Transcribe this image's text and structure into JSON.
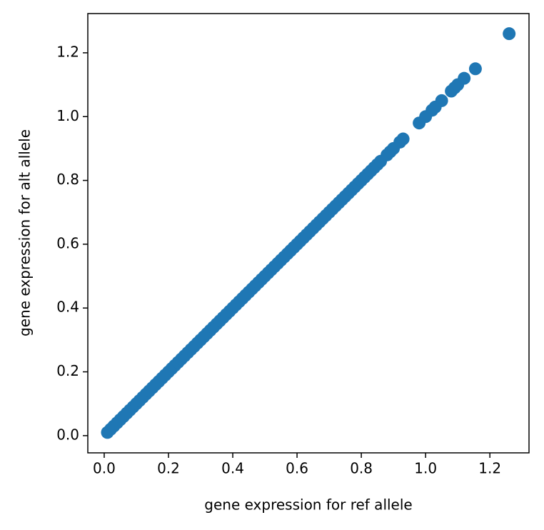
{
  "chart_data": {
    "type": "scatter",
    "x_label": "gene expression for ref allele",
    "y_label": "gene expression for alt allele",
    "color": "#1f77b4",
    "xlim": [
      -0.051,
      1.324
    ],
    "ylim": [
      -0.054,
      1.323
    ],
    "xticks": [
      {
        "value": 0,
        "label": "0.0"
      },
      0.2,
      0.4,
      0.6,
      0.8,
      {
        "value": 1,
        "label": "1.0"
      },
      1.2
    ],
    "yticks": [
      {
        "value": 0,
        "label": "0.0"
      },
      0.2,
      0.4,
      0.6,
      0.8,
      {
        "value": 1,
        "label": "1.0"
      },
      1.2
    ],
    "x": [
      0.01,
      0.02,
      0.03,
      0.04,
      0.05,
      0.06,
      0.07,
      0.08,
      0.09,
      0.1,
      0.11,
      0.12,
      0.13,
      0.14,
      0.15,
      0.16,
      0.17,
      0.18,
      0.19,
      0.2,
      0.21,
      0.22,
      0.23,
      0.24,
      0.25,
      0.26,
      0.27,
      0.28,
      0.29,
      0.3,
      0.31,
      0.32,
      0.33,
      0.34,
      0.35,
      0.36,
      0.37,
      0.38,
      0.39,
      0.4,
      0.41,
      0.42,
      0.43,
      0.44,
      0.45,
      0.46,
      0.47,
      0.48,
      0.49,
      0.5,
      0.51,
      0.52,
      0.53,
      0.54,
      0.55,
      0.56,
      0.57,
      0.58,
      0.59,
      0.6,
      0.61,
      0.62,
      0.63,
      0.64,
      0.65,
      0.66,
      0.67,
      0.68,
      0.69,
      0.7,
      0.71,
      0.72,
      0.73,
      0.74,
      0.75,
      0.76,
      0.77,
      0.78,
      0.79,
      0.8,
      0.81,
      0.82,
      0.83,
      0.84,
      0.85,
      0.86,
      0.88,
      0.89,
      0.9,
      0.92,
      0.93,
      0.98,
      1.0,
      1.02,
      1.03,
      1.05,
      1.08,
      1.09,
      1.1,
      1.12,
      1.155,
      1.26
    ],
    "values": [
      0.01,
      0.02,
      0.03,
      0.04,
      0.05,
      0.06,
      0.07,
      0.08,
      0.09,
      0.1,
      0.11,
      0.12,
      0.13,
      0.14,
      0.15,
      0.16,
      0.17,
      0.18,
      0.19,
      0.2,
      0.21,
      0.22,
      0.23,
      0.24,
      0.25,
      0.26,
      0.27,
      0.28,
      0.29,
      0.3,
      0.31,
      0.32,
      0.33,
      0.34,
      0.35,
      0.36,
      0.37,
      0.38,
      0.39,
      0.4,
      0.41,
      0.42,
      0.43,
      0.44,
      0.45,
      0.46,
      0.47,
      0.48,
      0.49,
      0.5,
      0.51,
      0.52,
      0.53,
      0.54,
      0.55,
      0.56,
      0.57,
      0.58,
      0.59,
      0.6,
      0.61,
      0.62,
      0.63,
      0.64,
      0.65,
      0.66,
      0.67,
      0.68,
      0.69,
      0.7,
      0.71,
      0.72,
      0.73,
      0.74,
      0.75,
      0.76,
      0.77,
      0.78,
      0.79,
      0.8,
      0.81,
      0.82,
      0.83,
      0.84,
      0.85,
      0.86,
      0.88,
      0.89,
      0.9,
      0.92,
      0.93,
      0.98,
      1.0,
      1.02,
      1.03,
      1.05,
      1.08,
      1.09,
      1.1,
      1.12,
      1.15,
      1.26
    ]
  }
}
